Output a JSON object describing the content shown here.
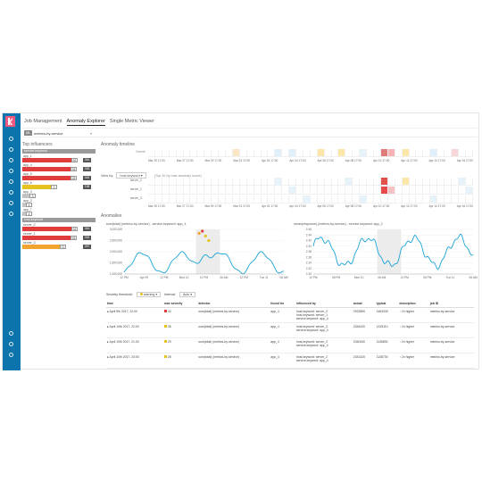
{
  "tabs": [
    {
      "label": "Job Management",
      "active": false
    },
    {
      "label": "Anomaly Explorer",
      "active": true
    },
    {
      "label": "Single Metric Viewer",
      "active": false
    }
  ],
  "job": {
    "badge": "ML",
    "name": "metrics-by-service"
  },
  "influencers": {
    "title": "Top influencers",
    "groups": [
      {
        "field": "service.keyword",
        "items": [
          {
            "name": "app_1",
            "score": "93",
            "total": "344",
            "bar": 0.9,
            "color": "red"
          },
          {
            "name": "app_4",
            "score": "93",
            "total": "316",
            "bar": 0.88,
            "color": "red"
          },
          {
            "name": "app_5",
            "score": "93",
            "total": "316",
            "bar": 0.88,
            "color": "red"
          },
          {
            "name": "app_6",
            "score": "3",
            "total": "198",
            "bar": 0.55,
            "color": "yellow"
          },
          {
            "name": "app_3",
            "score": "3",
            "total": "",
            "bar": 0.18,
            "color": "grey"
          },
          {
            "name": "app_2",
            "score": "4",
            "total": "",
            "bar": 0.1,
            "color": "grey"
          },
          {
            "name": "app_7",
            "score": "4",
            "total": "",
            "bar": 0.1,
            "color": "grey"
          }
        ]
      },
      {
        "field": "host.keyword",
        "items": [
          {
            "name": "server_2",
            "score": "93",
            "total": "344",
            "bar": 0.9,
            "color": "red"
          },
          {
            "name": "server_1",
            "score": "93",
            "total": "332",
            "bar": 0.88,
            "color": "red"
          },
          {
            "name": "server_3",
            "score": "72",
            "total": "267",
            "bar": 0.7,
            "color": "orange"
          }
        ]
      }
    ]
  },
  "timeline": {
    "title": "Anomaly timeline",
    "overall_label": "Overall",
    "axis": [
      "Mar 25 17:00",
      "Mar 26 17:00",
      "Mar 27 17:00",
      "Mar 28 17:00",
      "Mar 29 17:00",
      "Mar 30 17:00",
      "Mar 31 17:00",
      "Apr 01 17:00",
      "Apr 02 17:00",
      "Apr 03 17:00",
      "Apr 04 17:00",
      "Apr 05 17:00",
      "Apr 06 17:00",
      "Apr 07 17:00",
      "Apr 08 17:00",
      "Apr 09 17:00",
      "Apr 10 17:00",
      "Apr 11 17:00",
      "Apr 12 17:00",
      "Apr 13 17:00",
      "Apr 14 17:00",
      "Apr 15 17:00",
      "Apr 16 17:00"
    ],
    "view_by_label": "View by:",
    "view_by_value": "host.keyword",
    "view_by_hint": "(Top 10 by max anomaly score)",
    "rows": [
      "server_2",
      "server_1",
      "server_3"
    ]
  },
  "anomalies_title": "Anomalies",
  "charts": [
    {
      "title": "sum(total) (metrics-by-service) - service.keyword: app_4",
      "ylim": [
        1000000,
        3000000
      ],
      "yticks": [
        "3,000,000",
        "2,500,000",
        "2,000,000",
        "1,500,000",
        "1,000,000"
      ],
      "xticks": [
        "12 PM",
        "Apr 09",
        "12 PM",
        "Mon 10",
        "12 PM",
        "06 AM",
        "12 PM",
        "Tue 11",
        "06 AM"
      ]
    },
    {
      "title": "mean(response) (metrics-by-service) - service.keyword: app_2",
      "ylim": [
        2.3,
        2.46
      ],
      "yticks": [
        "2.46",
        "2.44",
        "2.42",
        "2.40",
        "2.38",
        "2.36",
        "2.34",
        "2.32",
        "2.30"
      ],
      "xticks": [
        "12 PM",
        "06 PM",
        "Mon 10",
        "06 AM",
        "12 PM",
        "06 PM",
        "Tue 11",
        "06 AM"
      ]
    }
  ],
  "severity": {
    "label": "Severity threshold:",
    "value": "warning",
    "interval_label": "Interval:",
    "interval_value": "Auto"
  },
  "table": {
    "headers": [
      "time",
      "max severity",
      "detector",
      "found for",
      "influenced by",
      "actual",
      "typical",
      "description",
      "job ID"
    ],
    "rows": [
      {
        "time": "April 9th 2017, 22:00",
        "severity": "40",
        "sev_color": "#e03c3c",
        "detector": "sum(total) (metrics-by-service)",
        "found_for": "app_4",
        "influenced_by": "host.keyword: server_2\nhost.keyword: server_1\nservice.keyword: app_4",
        "actual": "2922890",
        "typical": "1483330",
        "description": "2x higher",
        "job_id": "metrics-by-service"
      },
      {
        "time": "April 10th 2017, 22:00",
        "severity": "35",
        "sev_color": "#e6c220",
        "detector": "sum(total) (metrics-by-service)",
        "found_for": "app_4",
        "influenced_by": "host.keyword: server_2\nservice.keyword: app_4",
        "actual": "2344420",
        "typical": "1319110",
        "description": "2x higher",
        "job_id": "metrics-by-service"
      },
      {
        "time": "April 10th 2017, 21:00",
        "severity": "29",
        "sev_color": "#e6c220",
        "detector": "sum(total) (metrics-by-service)",
        "found_for": "app_4",
        "influenced_by": "host.keyword: server_2\nservice.keyword: app_4",
        "actual": "2340430",
        "typical": "1136830",
        "description": "2x higher",
        "job_id": "metrics-by-service"
      },
      {
        "time": "April 10th 2017, 23:00",
        "severity": "28",
        "sev_color": "#e6c220",
        "detector": "sum(total) (metrics-by-service)",
        "found_for": "app_4",
        "influenced_by": "host.keyword: server_2\nservice.keyword: app_4",
        "actual": "2341420",
        "typical": "1138730",
        "description": "2x higher",
        "job_id": "metrics-by-service"
      }
    ]
  },
  "colors": {
    "nav": "#0c74ad",
    "line": "#1aa3d6",
    "critical": "#e03c3c",
    "warning": "#e6c220",
    "minor": "#f2a431",
    "low": "#c9e8f5"
  }
}
